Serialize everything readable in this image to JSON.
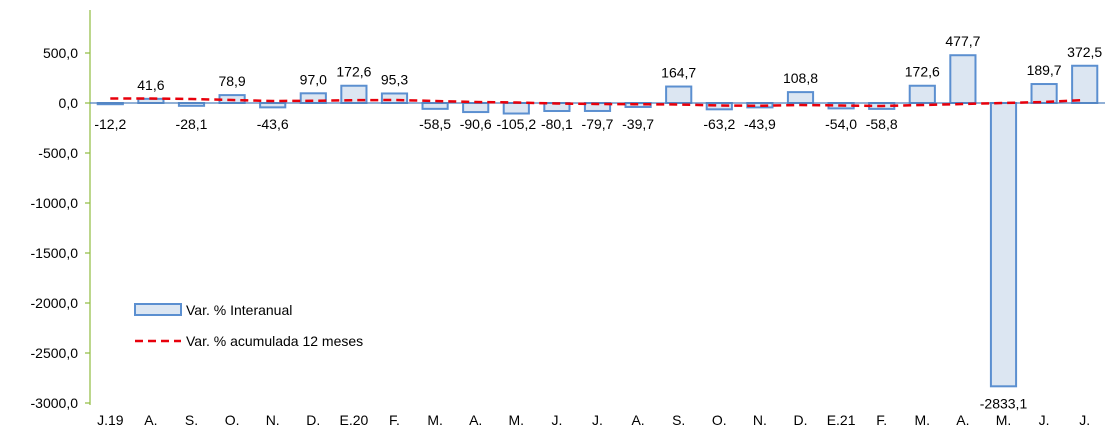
{
  "chart_data": {
    "type": "bar",
    "categories": [
      "J.19",
      "A.",
      "S.",
      "O.",
      "N.",
      "D.",
      "E.20",
      "F.",
      "M.",
      "A.",
      "M.",
      "J.",
      "J.",
      "A.",
      "S.",
      "O.",
      "N.",
      "D.",
      "E.21",
      "F.",
      "M.",
      "A.",
      "M.",
      "J.",
      "J."
    ],
    "series": [
      {
        "name": "Var. % Interanual",
        "kind": "bar",
        "values": [
          -12.2,
          41.6,
          -28.1,
          78.9,
          -43.6,
          97.0,
          172.6,
          95.3,
          -58.5,
          -90.6,
          -105.2,
          -80.1,
          -79.7,
          -39.7,
          164.7,
          -63.2,
          -43.9,
          108.8,
          -54.0,
          -58.8,
          172.6,
          477.7,
          -2833.1,
          189.7,
          372.5
        ],
        "labels": [
          "-12,2",
          "41,6",
          "-28,1",
          "78,9",
          "-43,6",
          "97,0",
          "172,6",
          "95,3",
          "-58,5",
          "-90,6",
          "-105,2",
          "-80,1",
          "-79,7",
          "-39,7",
          "164,7",
          "-63,2",
          "-43,9",
          "108,8",
          "-54,0",
          "-58,8",
          "172,6",
          "477,7",
          "-2833,1",
          "189,7",
          "372,5"
        ],
        "fill": "#dce6f2",
        "stroke": "#5b8fd0"
      },
      {
        "name": "Var. % acumulada 12 meses",
        "kind": "line",
        "values": [
          45,
          45,
          40,
          30,
          20,
          22,
          28,
          30,
          20,
          10,
          5,
          -5,
          -10,
          -12,
          -15,
          -25,
          -28,
          -20,
          -25,
          -30,
          -20,
          -10,
          0,
          10,
          30
        ],
        "color": "#e8000b",
        "dash": true
      }
    ],
    "yticks": [
      "500,0",
      "0,0",
      "-500,0",
      "-1000,0",
      "-1500,0",
      "-2000,0",
      "-2500,0",
      "-3000,0"
    ],
    "ytick_values": [
      500,
      0,
      -500,
      -1000,
      -1500,
      -2000,
      -2500,
      -3000
    ],
    "ylim": [
      -3000,
      1000
    ],
    "grid": false,
    "legend": "bottom-left, inside plot",
    "axis_color": "#8fbc3f"
  }
}
